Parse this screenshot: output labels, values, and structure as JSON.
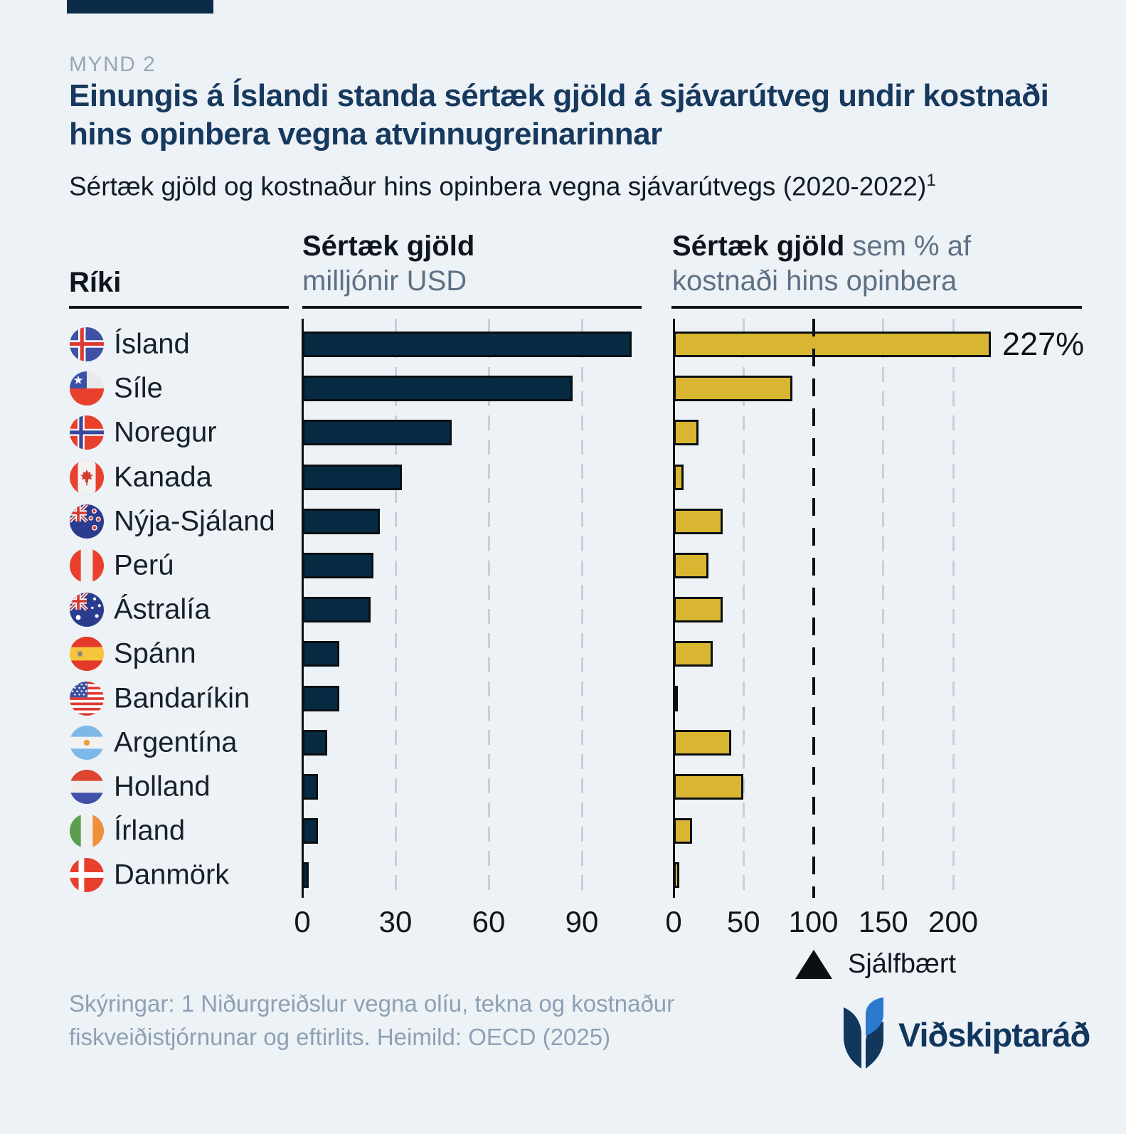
{
  "meta": {
    "eyebrow": "MYND 2",
    "title": "Einungis á Íslandi standa sértæk gjöld á sjávarútveg undir kostnaði hins opinbera vegna atvinnugreinarinnar",
    "subtitle": "Sértæk gjöld og kostnaður hins opinbera vegna sjávarútvegs (2020-2022)",
    "subtitle_superscript": "1"
  },
  "columns": {
    "country_header": "Ríki",
    "left_title_bold": "Sértæk gjöld",
    "left_subtitle": "milljónir USD",
    "right_title_bold": "Sértæk gjöld",
    "right_title_rest": " sem % af",
    "right_subtitle": "kostnaði hins opinbera"
  },
  "chart_data": {
    "type": "bar",
    "orientation": "horizontal",
    "title": "Sértæk gjöld og kostnaður hins opinbera vegna sjávarútvegs (2020-2022)",
    "categories": [
      "Ísland",
      "Síle",
      "Noregur",
      "Kanada",
      "Nýja-Sjáland",
      "Perú",
      "Ástralía",
      "Spánn",
      "Bandaríkin",
      "Argentína",
      "Holland",
      "Írland",
      "Danmörk"
    ],
    "flags": [
      "iceland",
      "chile",
      "norway",
      "canada",
      "new-zealand",
      "peru",
      "australia",
      "spain",
      "usa",
      "argentina",
      "netherlands",
      "ireland",
      "denmark"
    ],
    "grid": true,
    "series": [
      {
        "name": "Sértæk gjöld",
        "unit": "milljónir USD",
        "color": "#072A43",
        "ticks": [
          0,
          30,
          60,
          90
        ],
        "values": [
          106,
          87,
          48,
          32,
          25,
          23,
          22,
          12,
          12,
          8,
          5,
          5,
          2
        ]
      },
      {
        "name": "Sértæk gjöld sem % af kostnaði hins opinbera",
        "unit": "%",
        "color": "#D9B631",
        "ticks": [
          0,
          50,
          100,
          150,
          200
        ],
        "values": [
          227,
          85,
          18,
          7,
          35,
          25,
          35,
          28,
          1,
          41,
          50,
          13,
          4
        ],
        "reference_line": {
          "value": 100,
          "label": "Sjálfbært"
        },
        "data_labels": [
          {
            "index": 0,
            "text": "227%"
          }
        ]
      }
    ]
  },
  "legend": {
    "marker": "triangle-up-icon",
    "label": "Sjálfbært"
  },
  "footer": {
    "note": "Skýringar: 1 Niðurgreiðslur vegna olíu, tekna og kostnaður fiskveiðistjórnunar og eftirlits. Heimild: OECD (2025)",
    "logo_text": "Viðskiptaráð"
  },
  "colors": {
    "background": "#EDF2F7",
    "navy_bar": "#072A43",
    "gold_bar": "#D9B631",
    "title_navy": "#17395E",
    "grid_gray": "#C7CFDA",
    "muted_text": "#5E7184",
    "footer_text": "#8FA0B4",
    "logo_blue": "#2A79CC"
  }
}
